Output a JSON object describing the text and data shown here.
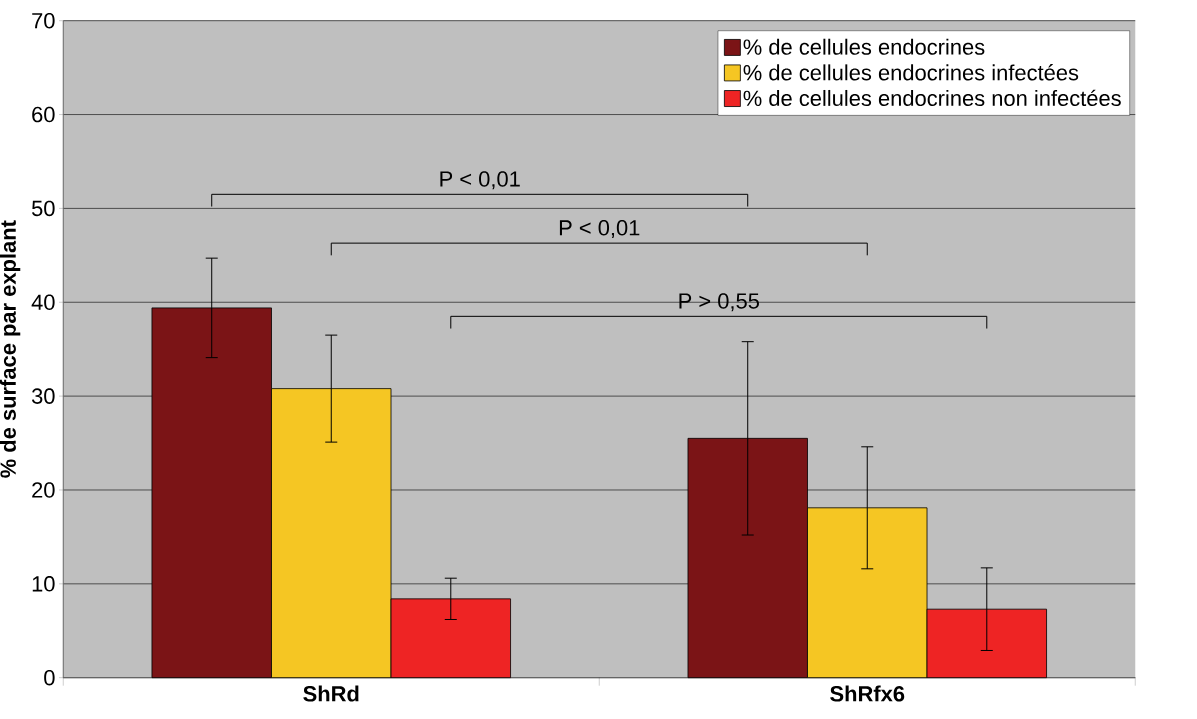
{
  "chart_data": {
    "type": "bar",
    "ylabel": "% de surface par explant",
    "categories": [
      "ShRd",
      "ShRfx6"
    ],
    "series": [
      {
        "name": "% de cellules endocrines",
        "color": "#7b1416",
        "values": [
          39.4,
          25.5
        ],
        "errors": [
          5.3,
          10.3
        ]
      },
      {
        "name": "% de cellules endocrines infectées",
        "color": "#f5c623",
        "values": [
          30.8,
          18.1
        ],
        "errors": [
          5.7,
          6.5
        ]
      },
      {
        "name": "% de cellules endocrines non infectées",
        "color": "#ee2424",
        "values": [
          8.4,
          7.3
        ],
        "errors": [
          2.2,
          4.4
        ]
      }
    ],
    "ylim": [
      0,
      70
    ],
    "yticks": [
      0,
      10,
      20,
      30,
      40,
      50,
      60,
      70
    ],
    "grid": "y",
    "legend": "top right",
    "annotations": [
      "P < 0,01",
      "P < 0,01",
      "P > 0,55"
    ]
  }
}
